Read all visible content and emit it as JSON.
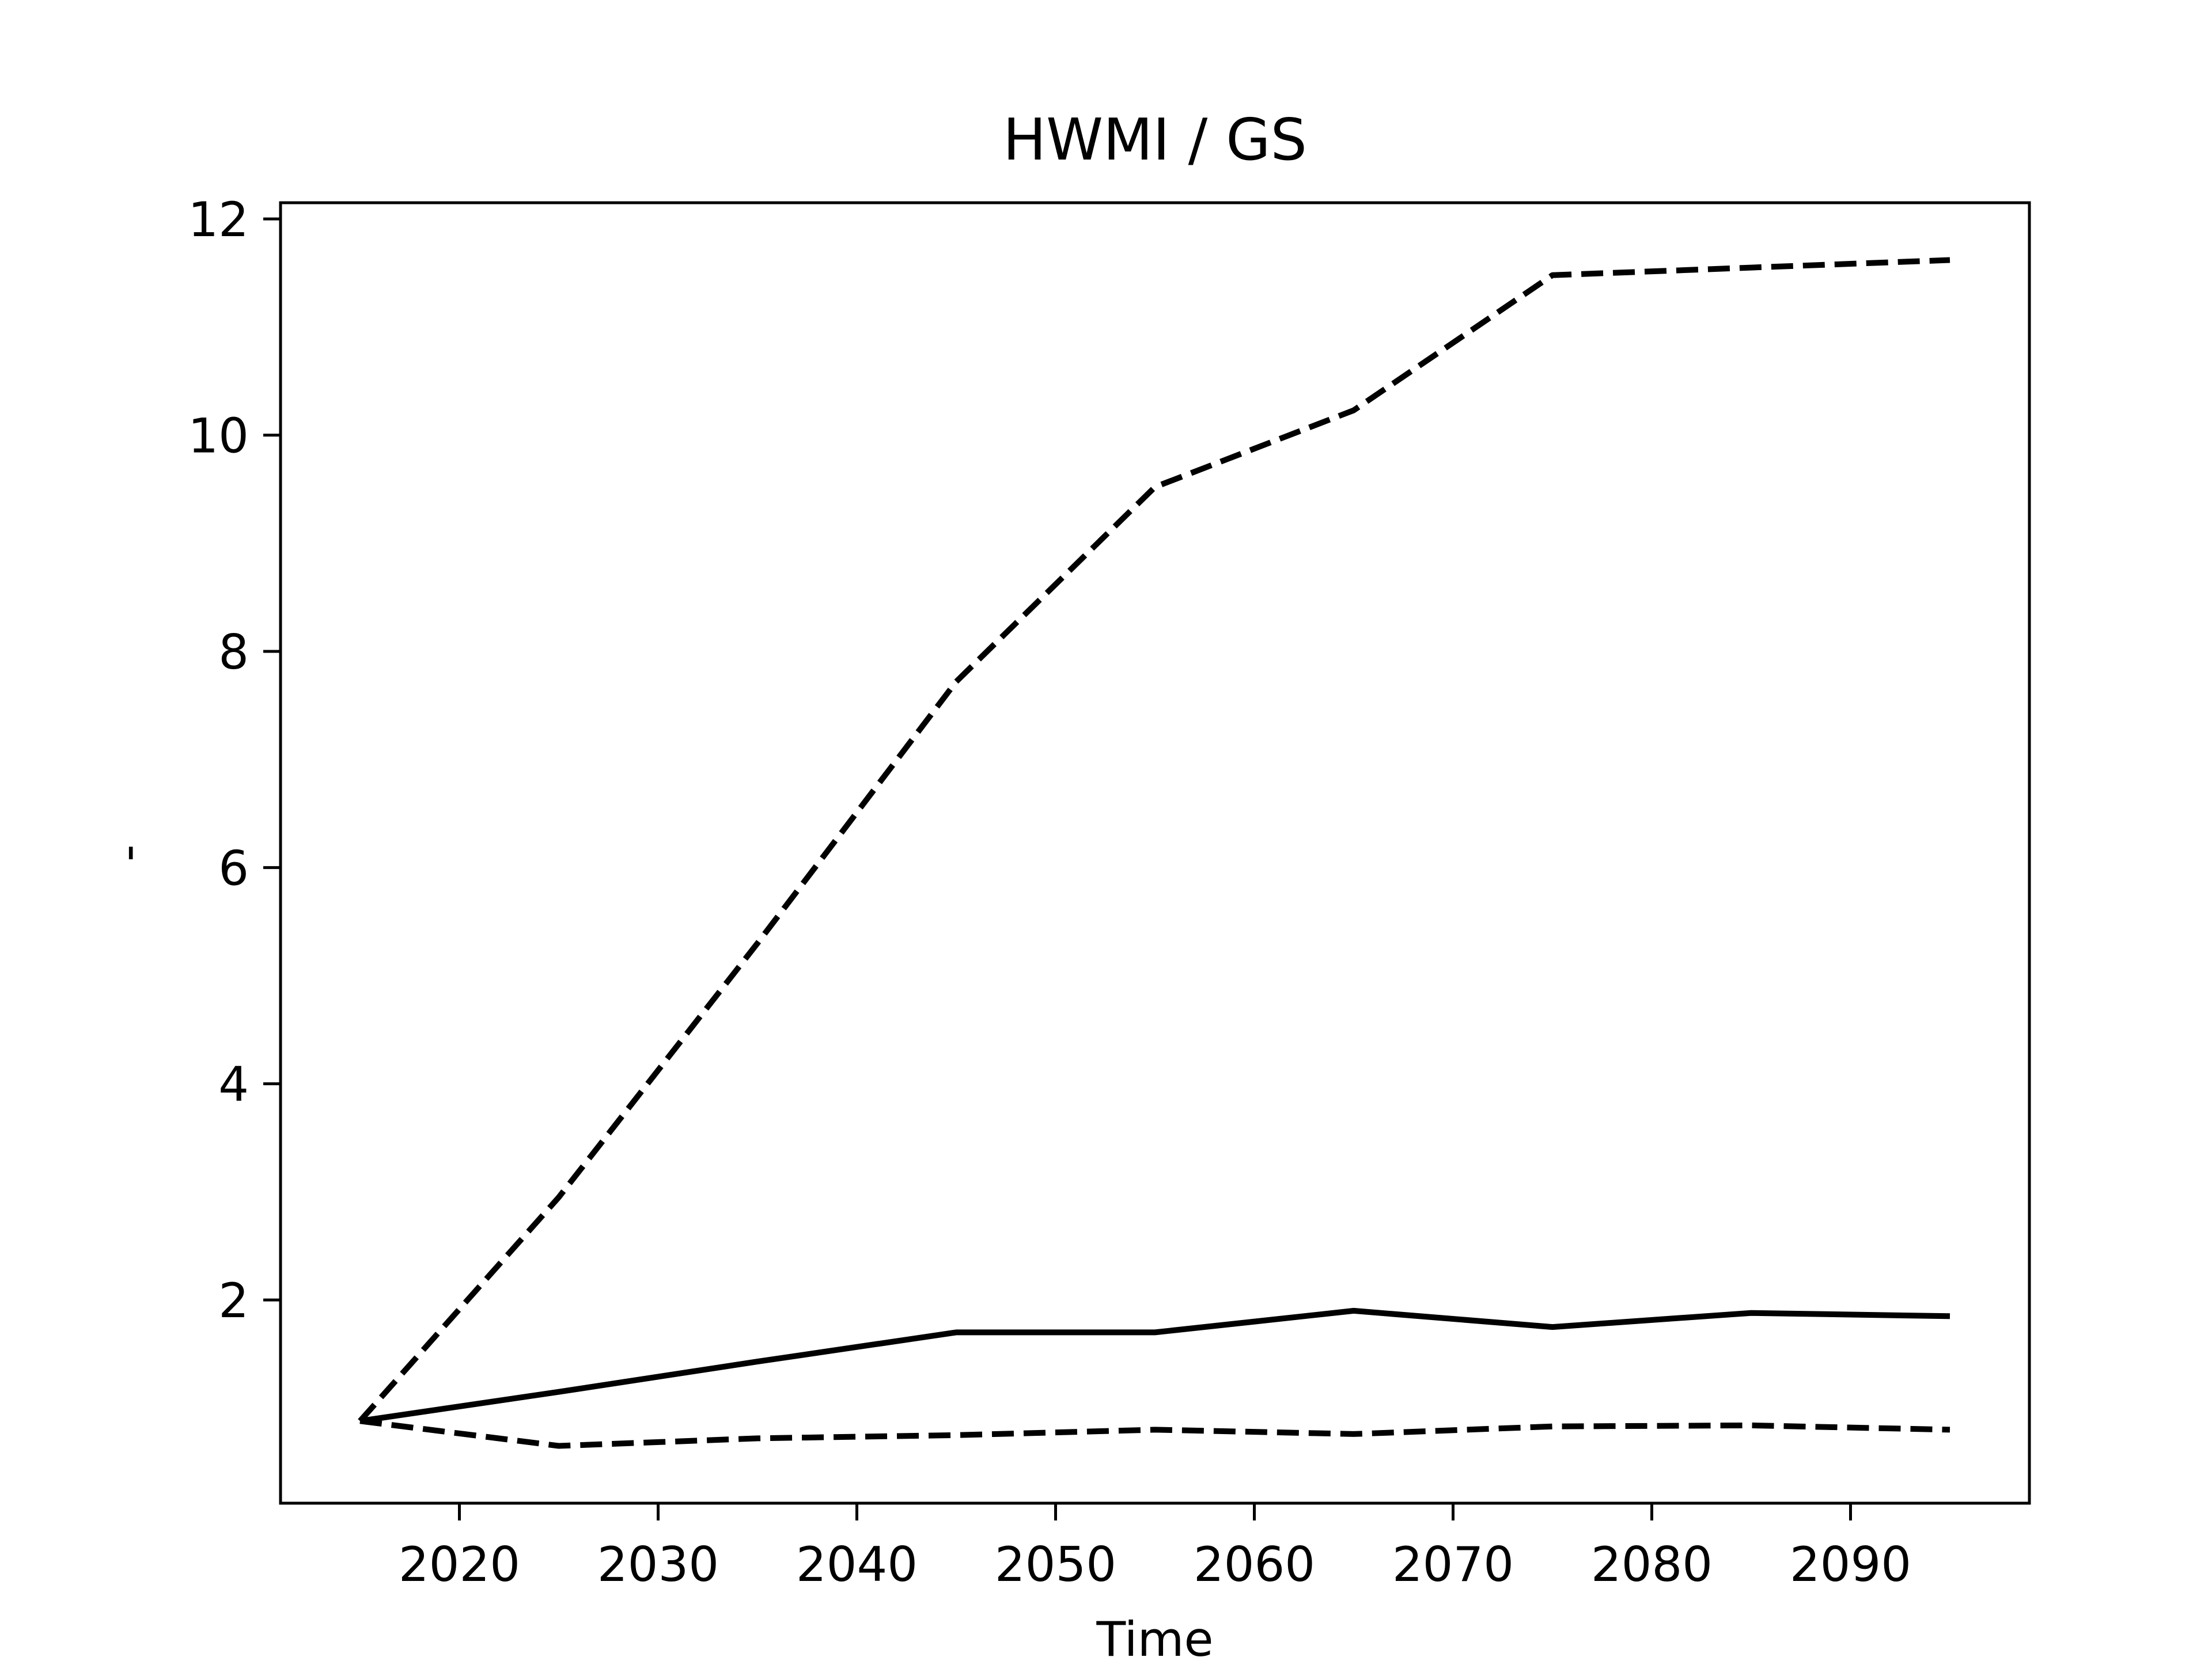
{
  "chart_data": {
    "type": "line",
    "title": "HWMI / GS",
    "xlabel": "Time",
    "ylabel": "-",
    "xlim": [
      2011,
      2099
    ],
    "ylim": [
      0.12,
      12.15
    ],
    "x_ticks": [
      2020,
      2030,
      2040,
      2050,
      2060,
      2070,
      2080,
      2090
    ],
    "y_ticks": [
      2,
      4,
      6,
      8,
      10,
      12
    ],
    "grid": false,
    "legend": false,
    "x": [
      2015,
      2025,
      2035,
      2045,
      2055,
      2065,
      2075,
      2085,
      2095
    ],
    "series": [
      {
        "line_style": "solid",
        "color": "#000000",
        "values": [
          0.88,
          1.15,
          1.43,
          1.7,
          1.7,
          1.9,
          1.75,
          1.88,
          1.85
        ]
      },
      {
        "line_style": "dashed",
        "color": "#000000",
        "values": [
          0.88,
          2.95,
          5.3,
          7.72,
          9.52,
          10.23,
          11.48,
          11.55,
          11.62
        ]
      },
      {
        "line_style": "dashed",
        "color": "#000000",
        "values": [
          0.88,
          0.65,
          0.72,
          0.75,
          0.8,
          0.76,
          0.83,
          0.84,
          0.8
        ]
      }
    ]
  }
}
